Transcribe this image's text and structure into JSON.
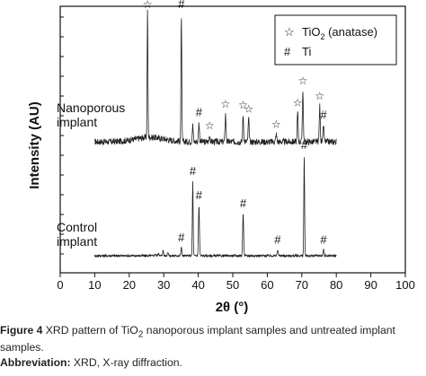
{
  "chart_data": {
    "type": "line",
    "title": "",
    "xlabel": "2θ (°)",
    "ylabel": "Intensity (AU)",
    "xlim": [
      0,
      100
    ],
    "xticks": [
      0,
      10,
      20,
      30,
      40,
      50,
      60,
      70,
      80,
      90,
      100
    ],
    "y_tick_labels": false,
    "grid": false,
    "legend": {
      "position": "top-right",
      "entries": [
        {
          "marker": "☆",
          "label": "TiO",
          "sub": "2",
          "label_after": " (anatase)"
        },
        {
          "marker": "#",
          "label": "Ti"
        }
      ]
    },
    "series": [
      {
        "name": "Nanoporous implant",
        "name_lines": [
          "Nanoporous",
          "implant"
        ],
        "x_range": [
          10,
          80
        ],
        "baseline": 0.08,
        "peaks": [
          {
            "x": 25.3,
            "h": 1.0,
            "marker": "☆"
          },
          {
            "x": 35.1,
            "h": 1.0,
            "marker": "#"
          },
          {
            "x": 38.4,
            "h": 0.13,
            "marker": ""
          },
          {
            "x": 40.2,
            "h": 0.15,
            "marker": "#"
          },
          {
            "x": 43.3,
            "h": 0.05,
            "marker": "☆"
          },
          {
            "x": 47.9,
            "h": 0.22,
            "marker": "☆"
          },
          {
            "x": 53.0,
            "h": 0.21,
            "marker": "☆"
          },
          {
            "x": 54.6,
            "h": 0.18,
            "marker": "☆"
          },
          {
            "x": 62.6,
            "h": 0.06,
            "marker": "☆"
          },
          {
            "x": 68.8,
            "h": 0.23,
            "marker": "☆"
          },
          {
            "x": 70.3,
            "h": 0.4,
            "marker": "☆"
          },
          {
            "x": 75.2,
            "h": 0.28,
            "marker": "☆"
          },
          {
            "x": 76.3,
            "h": 0.13,
            "marker": "#"
          }
        ]
      },
      {
        "name": "Control implant",
        "name_lines": [
          "Control",
          "implant"
        ],
        "x_range": [
          10,
          80
        ],
        "baseline": 0.0,
        "peaks": [
          {
            "x": 27.5,
            "h": 0.02,
            "marker": ""
          },
          {
            "x": 28.5,
            "h": 0.03,
            "marker": ""
          },
          {
            "x": 29.8,
            "h": 0.05,
            "marker": ""
          },
          {
            "x": 31.2,
            "h": 0.04,
            "marker": ""
          },
          {
            "x": 35.1,
            "h": 0.08,
            "marker": "#"
          },
          {
            "x": 38.4,
            "h": 0.74,
            "marker": "#"
          },
          {
            "x": 40.2,
            "h": 0.5,
            "marker": "#"
          },
          {
            "x": 53.0,
            "h": 0.42,
            "marker": "#"
          },
          {
            "x": 63.0,
            "h": 0.06,
            "marker": "#"
          },
          {
            "x": 70.7,
            "h": 1.0,
            "marker": "#"
          },
          {
            "x": 76.3,
            "h": 0.06,
            "marker": "#"
          }
        ]
      }
    ]
  },
  "caption": {
    "figure_label": "Figure 4",
    "figure_text_a": " XRD pattern of TiO",
    "figure_text_sub": "2",
    "figure_text_b": " nanoporous implant samples and untreated implant samples.",
    "abbrev_label": "Abbreviation:",
    "abbrev_text": " XRD, X-ray diffraction."
  }
}
